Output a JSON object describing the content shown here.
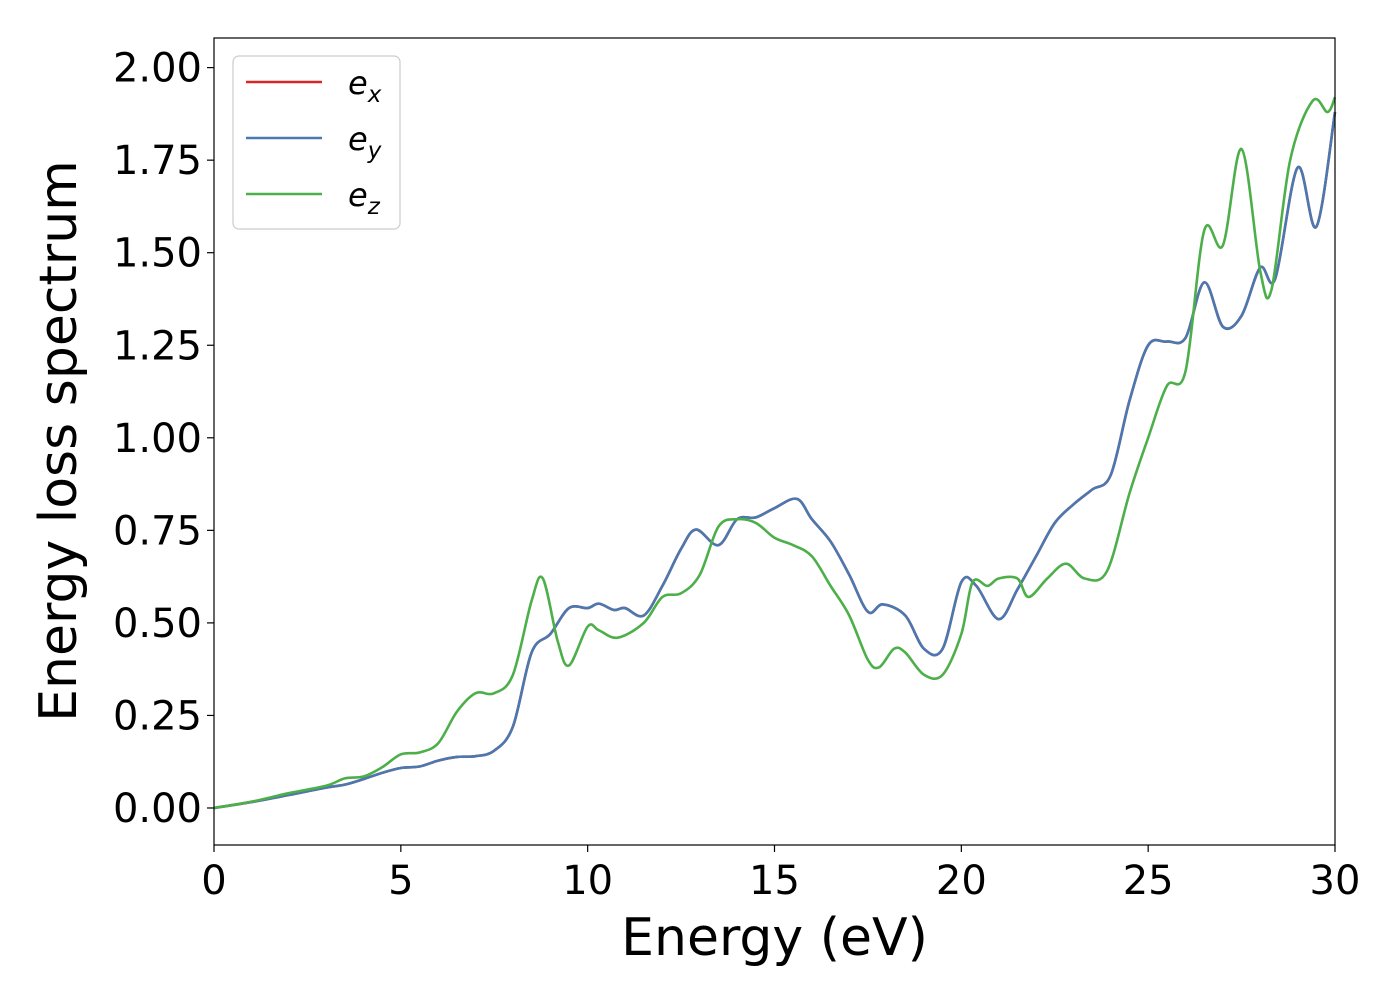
{
  "chart_data": {
    "type": "line",
    "title": "",
    "xlabel": "Energy (eV)",
    "ylabel": "Energy loss spectrum",
    "xlim": [
      0,
      30
    ],
    "ylim": [
      -0.1,
      2.08
    ],
    "xticks": [
      0,
      5,
      10,
      15,
      20,
      25,
      30
    ],
    "xtick_labels": [
      "0",
      "5",
      "10",
      "15",
      "20",
      "25",
      "30"
    ],
    "yticks": [
      0,
      0.25,
      0.5,
      0.75,
      1.0,
      1.25,
      1.5,
      1.75,
      2.0
    ],
    "ytick_labels": [
      "0.00",
      "0.25",
      "0.50",
      "0.75",
      "1.00",
      "1.25",
      "1.50",
      "1.75",
      "2.00"
    ],
    "grid": false,
    "legend_position": "top-left",
    "series": [
      {
        "name": "e_x",
        "legend_base": "e",
        "legend_sub": "x",
        "color": "#d62728",
        "points": [
          [
            0,
            0
          ],
          [
            1,
            0.016
          ],
          [
            2,
            0.035
          ],
          [
            3,
            0.055
          ],
          [
            3.5,
            0.063
          ],
          [
            4,
            0.078
          ],
          [
            4.5,
            0.095
          ],
          [
            5,
            0.108
          ],
          [
            5.5,
            0.112
          ],
          [
            6,
            0.128
          ],
          [
            6.5,
            0.138
          ],
          [
            7,
            0.14
          ],
          [
            7.5,
            0.155
          ],
          [
            8,
            0.22
          ],
          [
            8.5,
            0.42
          ],
          [
            9,
            0.47
          ],
          [
            9.5,
            0.54
          ],
          [
            10,
            0.54
          ],
          [
            10.3,
            0.552
          ],
          [
            10.7,
            0.535
          ],
          [
            11,
            0.54
          ],
          [
            11.5,
            0.52
          ],
          [
            12,
            0.6
          ],
          [
            12.5,
            0.7
          ],
          [
            12.9,
            0.752
          ],
          [
            13.5,
            0.71
          ],
          [
            14,
            0.78
          ],
          [
            14.5,
            0.785
          ],
          [
            15,
            0.81
          ],
          [
            15.6,
            0.835
          ],
          [
            16,
            0.78
          ],
          [
            16.5,
            0.72
          ],
          [
            17,
            0.63
          ],
          [
            17.5,
            0.53
          ],
          [
            17.9,
            0.55
          ],
          [
            18.5,
            0.52
          ],
          [
            19,
            0.43
          ],
          [
            19.5,
            0.43
          ],
          [
            20,
            0.61
          ],
          [
            20.4,
            0.6
          ],
          [
            21,
            0.51
          ],
          [
            21.5,
            0.59
          ],
          [
            22,
            0.68
          ],
          [
            22.5,
            0.77
          ],
          [
            23,
            0.82
          ],
          [
            23.5,
            0.86
          ],
          [
            24,
            0.9
          ],
          [
            24.5,
            1.1
          ],
          [
            25,
            1.25
          ],
          [
            25.5,
            1.26
          ],
          [
            26,
            1.27
          ],
          [
            26.5,
            1.42
          ],
          [
            27,
            1.3
          ],
          [
            27.5,
            1.33
          ],
          [
            28,
            1.46
          ],
          [
            28.4,
            1.43
          ],
          [
            29,
            1.73
          ],
          [
            29.5,
            1.57
          ],
          [
            30,
            1.88
          ]
        ]
      },
      {
        "name": "e_y",
        "legend_base": "e",
        "legend_sub": "y",
        "color": "#4a78b0",
        "points": [
          [
            0,
            0
          ],
          [
            1,
            0.016
          ],
          [
            2,
            0.035
          ],
          [
            3,
            0.055
          ],
          [
            3.5,
            0.063
          ],
          [
            4,
            0.078
          ],
          [
            4.5,
            0.095
          ],
          [
            5,
            0.108
          ],
          [
            5.5,
            0.112
          ],
          [
            6,
            0.128
          ],
          [
            6.5,
            0.138
          ],
          [
            7,
            0.14
          ],
          [
            7.5,
            0.155
          ],
          [
            8,
            0.22
          ],
          [
            8.5,
            0.42
          ],
          [
            9,
            0.47
          ],
          [
            9.5,
            0.54
          ],
          [
            10,
            0.54
          ],
          [
            10.3,
            0.552
          ],
          [
            10.7,
            0.535
          ],
          [
            11,
            0.54
          ],
          [
            11.5,
            0.52
          ],
          [
            12,
            0.6
          ],
          [
            12.5,
            0.7
          ],
          [
            12.9,
            0.752
          ],
          [
            13.5,
            0.71
          ],
          [
            14,
            0.78
          ],
          [
            14.5,
            0.785
          ],
          [
            15,
            0.81
          ],
          [
            15.6,
            0.835
          ],
          [
            16,
            0.78
          ],
          [
            16.5,
            0.72
          ],
          [
            17,
            0.63
          ],
          [
            17.5,
            0.53
          ],
          [
            17.9,
            0.55
          ],
          [
            18.5,
            0.52
          ],
          [
            19,
            0.43
          ],
          [
            19.5,
            0.43
          ],
          [
            20,
            0.61
          ],
          [
            20.4,
            0.6
          ],
          [
            21,
            0.51
          ],
          [
            21.5,
            0.59
          ],
          [
            22,
            0.68
          ],
          [
            22.5,
            0.77
          ],
          [
            23,
            0.82
          ],
          [
            23.5,
            0.86
          ],
          [
            24,
            0.9
          ],
          [
            24.5,
            1.1
          ],
          [
            25,
            1.25
          ],
          [
            25.5,
            1.26
          ],
          [
            26,
            1.27
          ],
          [
            26.5,
            1.42
          ],
          [
            27,
            1.3
          ],
          [
            27.5,
            1.33
          ],
          [
            28,
            1.46
          ],
          [
            28.4,
            1.43
          ],
          [
            29,
            1.73
          ],
          [
            29.5,
            1.57
          ],
          [
            30,
            1.88
          ]
        ]
      },
      {
        "name": "e_z",
        "legend_base": "e",
        "legend_sub": "z",
        "color": "#4daf4a",
        "points": [
          [
            0,
            0
          ],
          [
            1,
            0.017
          ],
          [
            2,
            0.04
          ],
          [
            3,
            0.06
          ],
          [
            3.5,
            0.08
          ],
          [
            4,
            0.085
          ],
          [
            4.5,
            0.11
          ],
          [
            5,
            0.145
          ],
          [
            5.5,
            0.15
          ],
          [
            6,
            0.175
          ],
          [
            6.5,
            0.26
          ],
          [
            7,
            0.31
          ],
          [
            7.5,
            0.31
          ],
          [
            8,
            0.36
          ],
          [
            8.5,
            0.56
          ],
          [
            8.8,
            0.62
          ],
          [
            9.2,
            0.45
          ],
          [
            9.5,
            0.385
          ],
          [
            10,
            0.49
          ],
          [
            10.3,
            0.48
          ],
          [
            10.8,
            0.46
          ],
          [
            11.5,
            0.5
          ],
          [
            12,
            0.57
          ],
          [
            12.5,
            0.58
          ],
          [
            13,
            0.63
          ],
          [
            13.5,
            0.76
          ],
          [
            14,
            0.78
          ],
          [
            14.5,
            0.77
          ],
          [
            15,
            0.73
          ],
          [
            15.5,
            0.71
          ],
          [
            16,
            0.68
          ],
          [
            16.5,
            0.6
          ],
          [
            17,
            0.52
          ],
          [
            17.5,
            0.4
          ],
          [
            17.8,
            0.38
          ],
          [
            18.2,
            0.43
          ],
          [
            18.5,
            0.42
          ],
          [
            19,
            0.36
          ],
          [
            19.5,
            0.36
          ],
          [
            20,
            0.47
          ],
          [
            20.3,
            0.61
          ],
          [
            20.7,
            0.6
          ],
          [
            21,
            0.62
          ],
          [
            21.5,
            0.62
          ],
          [
            21.8,
            0.57
          ],
          [
            22.3,
            0.62
          ],
          [
            22.8,
            0.66
          ],
          [
            23.3,
            0.62
          ],
          [
            23.9,
            0.64
          ],
          [
            24.5,
            0.85
          ],
          [
            25,
            1.0
          ],
          [
            25.5,
            1.14
          ],
          [
            26,
            1.18
          ],
          [
            26.5,
            1.56
          ],
          [
            27,
            1.52
          ],
          [
            27.5,
            1.78
          ],
          [
            28,
            1.45
          ],
          [
            28.3,
            1.4
          ],
          [
            28.8,
            1.75
          ],
          [
            29.4,
            1.91
          ],
          [
            29.8,
            1.88
          ],
          [
            30,
            1.92
          ]
        ]
      }
    ]
  }
}
